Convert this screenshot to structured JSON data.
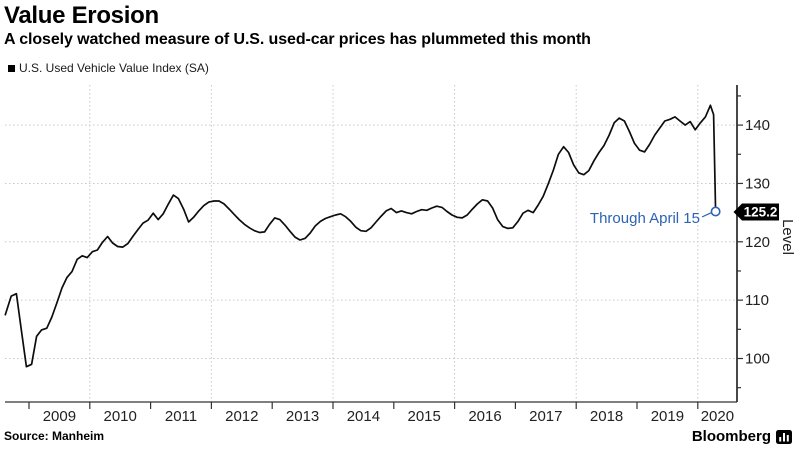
{
  "header": {
    "title": "Value Erosion",
    "subtitle": "A closely watched measure of U.S. used-car prices has plummeted this month"
  },
  "legend": {
    "label": "U.S. Used Vehicle Value Index (SA)",
    "marker_color": "#000000"
  },
  "annotation": {
    "text": "Through April 15",
    "color": "#2d62b4"
  },
  "value_tag": {
    "label": "125.2",
    "bg": "#000000",
    "fg": "#ffffff"
  },
  "y_axis": {
    "label": "Level"
  },
  "footer": {
    "source": "Source: Manheim",
    "brand": "Bloomberg"
  },
  "chart_data": {
    "type": "line",
    "title": "Value Erosion",
    "subtitle": "A closely watched measure of U.S. used-car prices has plummeted this month",
    "xlabel": "",
    "ylabel": "Level",
    "grid": "dotted",
    "legend_position": "top-left",
    "x_years": [
      2009,
      2010,
      2011,
      2012,
      2013,
      2014,
      2015,
      2016,
      2017,
      2018,
      2019,
      2020
    ],
    "grid_years": [
      2010,
      2012,
      2014,
      2016,
      2018,
      2020
    ],
    "y_ticks": [
      100,
      110,
      120,
      130,
      140
    ],
    "y_minor_ticks": [
      95,
      105,
      115,
      125,
      135,
      145
    ],
    "ylim": [
      92.5,
      147
    ],
    "xlim": [
      2008.6,
      2020.65
    ],
    "last_point": {
      "date": "April 15, 2020",
      "value": 125.2
    },
    "series": [
      {
        "name": "U.S. Used Vehicle Value Index (SA)",
        "color": "#0d0d0d",
        "points": [
          [
            2008.61,
            107.5
          ],
          [
            2008.708,
            110.7
          ],
          [
            2008.792,
            111.1
          ],
          [
            2008.875,
            104.8
          ],
          [
            2008.958,
            98.6
          ],
          [
            2009.042,
            99.0
          ],
          [
            2009.125,
            103.8
          ],
          [
            2009.208,
            104.9
          ],
          [
            2009.292,
            105.2
          ],
          [
            2009.375,
            107.1
          ],
          [
            2009.458,
            109.5
          ],
          [
            2009.542,
            112.1
          ],
          [
            2009.625,
            113.9
          ],
          [
            2009.708,
            114.9
          ],
          [
            2009.792,
            117.0
          ],
          [
            2009.875,
            117.6
          ],
          [
            2009.958,
            117.3
          ],
          [
            2010.042,
            118.3
          ],
          [
            2010.125,
            118.6
          ],
          [
            2010.208,
            119.9
          ],
          [
            2010.292,
            120.9
          ],
          [
            2010.375,
            119.8
          ],
          [
            2010.458,
            119.2
          ],
          [
            2010.542,
            119.1
          ],
          [
            2010.625,
            119.7
          ],
          [
            2010.708,
            120.9
          ],
          [
            2010.792,
            122.1
          ],
          [
            2010.875,
            123.2
          ],
          [
            2010.958,
            123.7
          ],
          [
            2011.042,
            124.9
          ],
          [
            2011.125,
            123.8
          ],
          [
            2011.208,
            124.8
          ],
          [
            2011.292,
            126.5
          ],
          [
            2011.375,
            128.0
          ],
          [
            2011.458,
            127.4
          ],
          [
            2011.542,
            125.6
          ],
          [
            2011.625,
            123.4
          ],
          [
            2011.708,
            124.2
          ],
          [
            2011.792,
            125.3
          ],
          [
            2011.875,
            126.2
          ],
          [
            2011.958,
            126.8
          ],
          [
            2012.042,
            127.0
          ],
          [
            2012.125,
            127.0
          ],
          [
            2012.208,
            126.5
          ],
          [
            2012.292,
            125.6
          ],
          [
            2012.375,
            124.7
          ],
          [
            2012.458,
            123.8
          ],
          [
            2012.542,
            123.0
          ],
          [
            2012.625,
            122.4
          ],
          [
            2012.708,
            121.9
          ],
          [
            2012.792,
            121.6
          ],
          [
            2012.875,
            121.7
          ],
          [
            2012.958,
            123.0
          ],
          [
            2013.042,
            124.1
          ],
          [
            2013.125,
            123.8
          ],
          [
            2013.208,
            122.9
          ],
          [
            2013.292,
            121.8
          ],
          [
            2013.375,
            120.8
          ],
          [
            2013.458,
            120.3
          ],
          [
            2013.542,
            120.6
          ],
          [
            2013.625,
            121.5
          ],
          [
            2013.708,
            122.7
          ],
          [
            2013.792,
            123.5
          ],
          [
            2013.875,
            124.0
          ],
          [
            2013.958,
            124.3
          ],
          [
            2014.042,
            124.6
          ],
          [
            2014.125,
            124.8
          ],
          [
            2014.208,
            124.3
          ],
          [
            2014.292,
            123.5
          ],
          [
            2014.375,
            122.5
          ],
          [
            2014.458,
            121.9
          ],
          [
            2014.542,
            121.8
          ],
          [
            2014.625,
            122.4
          ],
          [
            2014.708,
            123.4
          ],
          [
            2014.792,
            124.4
          ],
          [
            2014.875,
            125.3
          ],
          [
            2014.958,
            125.7
          ],
          [
            2015.042,
            125.0
          ],
          [
            2015.125,
            125.3
          ],
          [
            2015.208,
            125.0
          ],
          [
            2015.292,
            124.8
          ],
          [
            2015.375,
            125.2
          ],
          [
            2015.458,
            125.5
          ],
          [
            2015.542,
            125.4
          ],
          [
            2015.625,
            125.8
          ],
          [
            2015.708,
            126.1
          ],
          [
            2015.792,
            125.9
          ],
          [
            2015.875,
            125.2
          ],
          [
            2015.958,
            124.6
          ],
          [
            2016.042,
            124.2
          ],
          [
            2016.125,
            124.1
          ],
          [
            2016.208,
            124.6
          ],
          [
            2016.292,
            125.6
          ],
          [
            2016.375,
            126.5
          ],
          [
            2016.458,
            127.2
          ],
          [
            2016.542,
            127.0
          ],
          [
            2016.625,
            125.8
          ],
          [
            2016.708,
            123.8
          ],
          [
            2016.792,
            122.6
          ],
          [
            2016.875,
            122.3
          ],
          [
            2016.958,
            122.4
          ],
          [
            2017.042,
            123.5
          ],
          [
            2017.125,
            124.9
          ],
          [
            2017.208,
            125.4
          ],
          [
            2017.292,
            125.0
          ],
          [
            2017.375,
            126.3
          ],
          [
            2017.458,
            127.8
          ],
          [
            2017.542,
            130.0
          ],
          [
            2017.625,
            132.3
          ],
          [
            2017.708,
            135.0
          ],
          [
            2017.792,
            136.3
          ],
          [
            2017.875,
            135.3
          ],
          [
            2017.958,
            133.2
          ],
          [
            2018.042,
            131.8
          ],
          [
            2018.125,
            131.5
          ],
          [
            2018.208,
            132.2
          ],
          [
            2018.292,
            133.9
          ],
          [
            2018.375,
            135.3
          ],
          [
            2018.458,
            136.5
          ],
          [
            2018.542,
            138.3
          ],
          [
            2018.625,
            140.4
          ],
          [
            2018.708,
            141.2
          ],
          [
            2018.792,
            140.7
          ],
          [
            2018.875,
            138.9
          ],
          [
            2018.958,
            136.9
          ],
          [
            2019.042,
            135.7
          ],
          [
            2019.125,
            135.4
          ],
          [
            2019.208,
            136.7
          ],
          [
            2019.292,
            138.3
          ],
          [
            2019.375,
            139.5
          ],
          [
            2019.458,
            140.7
          ],
          [
            2019.542,
            141.0
          ],
          [
            2019.625,
            141.4
          ],
          [
            2019.708,
            140.7
          ],
          [
            2019.792,
            140.0
          ],
          [
            2019.875,
            140.6
          ],
          [
            2019.958,
            139.2
          ],
          [
            2020.042,
            140.4
          ],
          [
            2020.125,
            141.4
          ],
          [
            2020.208,
            143.4
          ],
          [
            2020.26,
            141.8
          ],
          [
            2020.292,
            125.2
          ]
        ]
      }
    ]
  }
}
